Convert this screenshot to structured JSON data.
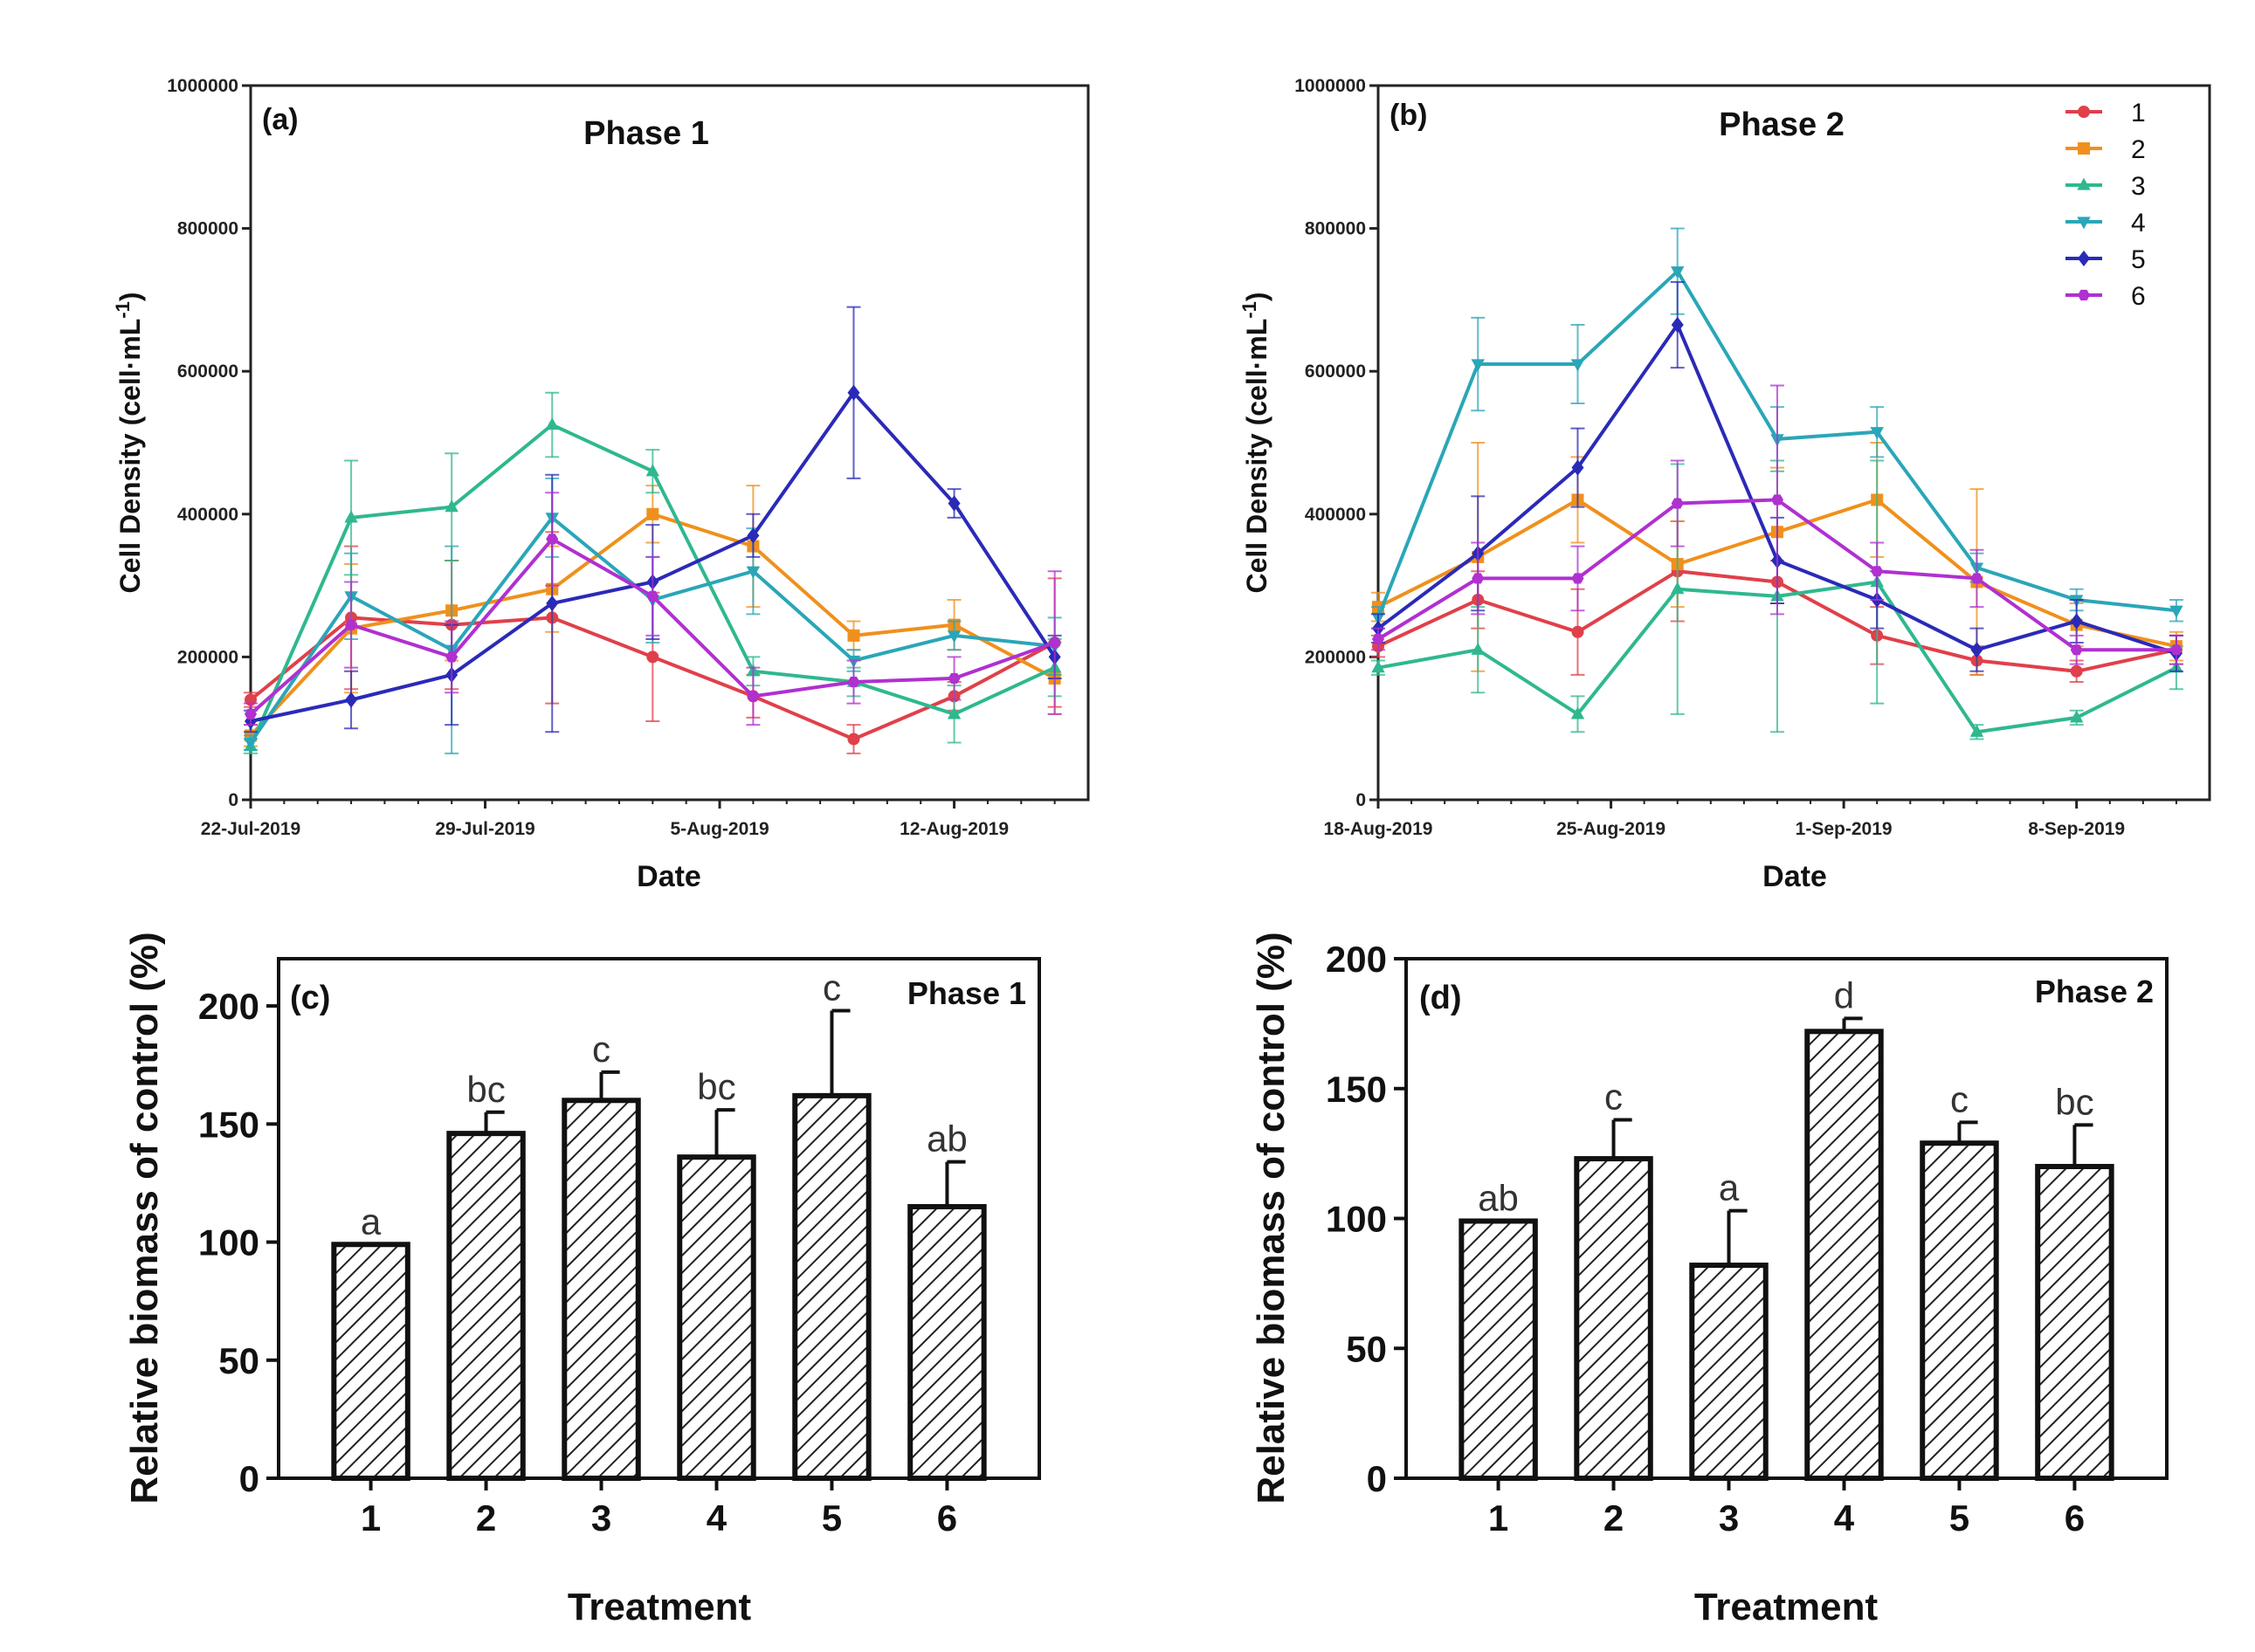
{
  "chart_data": [
    {
      "id": "a",
      "type": "line",
      "panel_label": "(a)",
      "title": "Phase 1",
      "xlabel": "Date",
      "ylabel_main": "Cell Density (cell·mL",
      "ylabel_sup": "-1",
      "ylabel_end": ")",
      "ylim": [
        0,
        1000000
      ],
      "yticks": [
        0,
        200000,
        400000,
        600000,
        800000,
        1000000
      ],
      "ytick_labels": [
        "0",
        "200000",
        "400000",
        "600000",
        "800000",
        "1000000"
      ],
      "xlim": [
        0,
        25
      ],
      "xticks": [
        {
          "x": 0,
          "label": "22-Jul-2019"
        },
        {
          "x": 7,
          "label": "29-Jul-2019"
        },
        {
          "x": 14,
          "label": "5-Aug-2019"
        },
        {
          "x": 21,
          "label": "12-Aug-2019"
        }
      ],
      "x": [
        0,
        3,
        6,
        9,
        12,
        15,
        18,
        21,
        24
      ],
      "series": [
        {
          "name": "1",
          "color": "#e0404a",
          "marker": "circle",
          "values": [
            140000,
            255000,
            245000,
            255000,
            200000,
            145000,
            85000,
            145000,
            220000
          ],
          "errors": [
            10000,
            100000,
            90000,
            120000,
            90000,
            30000,
            20000,
            20000,
            90000
          ]
        },
        {
          "name": "2",
          "color": "#f0901c",
          "marker": "square",
          "values": [
            90000,
            240000,
            265000,
            295000,
            400000,
            355000,
            230000,
            245000,
            170000
          ],
          "errors": [
            15000,
            90000,
            70000,
            60000,
            40000,
            85000,
            20000,
            35000,
            50000
          ]
        },
        {
          "name": "3",
          "color": "#2fb88f",
          "marker": "triangle-up",
          "values": [
            75000,
            395000,
            410000,
            525000,
            460000,
            180000,
            165000,
            120000,
            185000
          ],
          "errors": [
            10000,
            80000,
            75000,
            45000,
            30000,
            20000,
            20000,
            40000,
            40000
          ]
        },
        {
          "name": "4",
          "color": "#2aa6b8",
          "marker": "triangle-down",
          "values": [
            80000,
            285000,
            210000,
            395000,
            280000,
            320000,
            195000,
            230000,
            215000
          ],
          "errors": [
            10000,
            60000,
            145000,
            55000,
            60000,
            60000,
            15000,
            20000,
            40000
          ]
        },
        {
          "name": "5",
          "color": "#2a2ab8",
          "marker": "diamond",
          "values": [
            110000,
            140000,
            175000,
            275000,
            305000,
            370000,
            570000,
            415000,
            200000
          ],
          "errors": [
            15000,
            40000,
            70000,
            180000,
            80000,
            30000,
            120000,
            20000,
            30000
          ]
        },
        {
          "name": "6",
          "color": "#b030d0",
          "marker": "hexagon",
          "values": [
            120000,
            245000,
            200000,
            365000,
            285000,
            145000,
            165000,
            170000,
            220000
          ],
          "errors": [
            15000,
            60000,
            50000,
            65000,
            55000,
            40000,
            30000,
            30000,
            100000
          ]
        }
      ]
    },
    {
      "id": "b",
      "type": "line",
      "panel_label": "(b)",
      "title": "Phase 2",
      "xlabel": "Date",
      "ylabel_main": "Cell Density (cell·mL",
      "ylabel_sup": "-1",
      "ylabel_end": ")",
      "ylim": [
        0,
        1000000
      ],
      "yticks": [
        0,
        200000,
        400000,
        600000,
        800000,
        1000000
      ],
      "ytick_labels": [
        "0",
        "200000",
        "400000",
        "600000",
        "800000",
        "1000000"
      ],
      "xlim": [
        0,
        25
      ],
      "xticks": [
        {
          "x": 0,
          "label": "18-Aug-2019"
        },
        {
          "x": 7,
          "label": "25-Aug-2019"
        },
        {
          "x": 14,
          "label": "1-Sep-2019"
        },
        {
          "x": 21,
          "label": "8-Sep-2019"
        }
      ],
      "x": [
        0,
        3,
        6,
        9,
        12,
        15,
        18,
        21,
        24
      ],
      "legend": {
        "position": "top-right",
        "entries": [
          "1",
          "2",
          "3",
          "4",
          "5",
          "6"
        ]
      },
      "series": [
        {
          "name": "1",
          "color": "#e0404a",
          "marker": "circle",
          "values": [
            215000,
            280000,
            235000,
            320000,
            305000,
            230000,
            195000,
            180000,
            210000
          ],
          "errors": [
            15000,
            40000,
            60000,
            70000,
            30000,
            40000,
            20000,
            15000,
            20000
          ]
        },
        {
          "name": "2",
          "color": "#f0901c",
          "marker": "square",
          "values": [
            270000,
            340000,
            420000,
            330000,
            375000,
            420000,
            305000,
            245000,
            215000
          ],
          "errors": [
            20000,
            160000,
            60000,
            60000,
            90000,
            80000,
            130000,
            30000,
            20000
          ]
        },
        {
          "name": "3",
          "color": "#2fb88f",
          "marker": "triangle-up",
          "values": [
            185000,
            210000,
            120000,
            295000,
            285000,
            305000,
            95000,
            115000,
            185000
          ],
          "errors": [
            10000,
            60000,
            25000,
            175000,
            190000,
            170000,
            10000,
            10000,
            30000
          ]
        },
        {
          "name": "4",
          "color": "#2aa6b8",
          "marker": "triangle-down",
          "values": [
            255000,
            610000,
            610000,
            740000,
            505000,
            515000,
            325000,
            280000,
            265000
          ],
          "errors": [
            15000,
            65000,
            55000,
            60000,
            45000,
            35000,
            20000,
            15000,
            15000
          ]
        },
        {
          "name": "5",
          "color": "#2a2ab8",
          "marker": "diamond",
          "values": [
            240000,
            345000,
            465000,
            665000,
            335000,
            280000,
            210000,
            250000,
            205000
          ],
          "errors": [
            20000,
            80000,
            55000,
            60000,
            60000,
            40000,
            30000,
            30000,
            25000
          ]
        },
        {
          "name": "6",
          "color": "#b030d0",
          "marker": "hexagon",
          "values": [
            225000,
            310000,
            310000,
            415000,
            420000,
            320000,
            310000,
            210000,
            210000
          ],
          "errors": [
            15000,
            50000,
            45000,
            60000,
            160000,
            40000,
            40000,
            20000,
            20000
          ]
        }
      ]
    },
    {
      "id": "c",
      "type": "bar",
      "panel_label": "(c)",
      "title": "Phase 1",
      "xlabel": "Treatment",
      "ylabel": "Relative biomass of control (%)",
      "ylim": [
        0,
        220
      ],
      "yticks": [
        0,
        50,
        100,
        150,
        200
      ],
      "categories": [
        "1",
        "2",
        "3",
        "4",
        "5",
        "6"
      ],
      "values": [
        99,
        146,
        160,
        136,
        162,
        115
      ],
      "errors": [
        0,
        9,
        12,
        20,
        36,
        19
      ],
      "significance": [
        "a",
        "bc",
        "c",
        "bc",
        "c",
        "ab"
      ]
    },
    {
      "id": "d",
      "type": "bar",
      "panel_label": "(d)",
      "title": "Phase 2",
      "xlabel": "Treatment",
      "ylabel": "Relative biomass of control (%)",
      "ylim": [
        0,
        200
      ],
      "yticks": [
        0,
        50,
        100,
        150,
        200
      ],
      "categories": [
        "1",
        "2",
        "3",
        "4",
        "5",
        "6"
      ],
      "values": [
        99,
        123,
        82,
        172,
        129,
        120
      ],
      "errors": [
        0,
        15,
        21,
        5,
        8,
        16
      ],
      "significance": [
        "ab",
        "c",
        "a",
        "d",
        "c",
        "bc"
      ]
    }
  ]
}
